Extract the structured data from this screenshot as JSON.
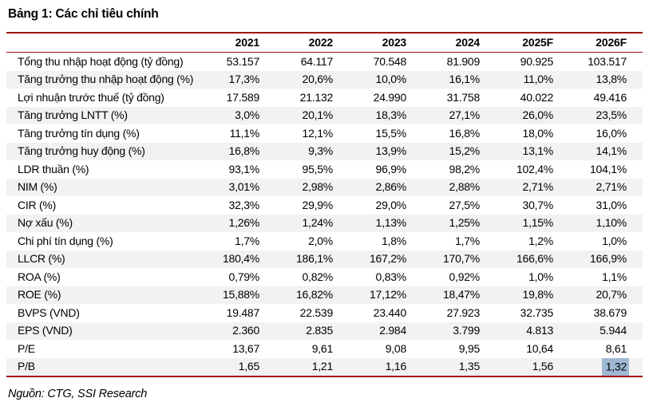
{
  "title": "Bảng 1: Các chỉ tiêu chính",
  "source_note": "Nguồn: CTG, SSI Research",
  "colors": {
    "rule_red": "#A50F0F",
    "alt_row_bg": "#F2F2F2",
    "highlight_blue": "#9FB9D4"
  },
  "table": {
    "columns": [
      "",
      "2021",
      "2022",
      "2023",
      "2024",
      "2025F",
      "2026F"
    ],
    "rows": [
      {
        "label": "Tổng thu nhập hoạt động (tỷ đồng)",
        "values": [
          "53.157",
          "64.117",
          "70.548",
          "81.909",
          "90.925",
          "103.517"
        ]
      },
      {
        "label": "Tăng trưởng thu nhập hoạt động (%)",
        "values": [
          "17,3%",
          "20,6%",
          "10,0%",
          "16,1%",
          "11,0%",
          "13,8%"
        ]
      },
      {
        "label": "Lợi nhuận trước thuế (tỷ đồng)",
        "values": [
          "17.589",
          "21.132",
          "24.990",
          "31.758",
          "40.022",
          "49.416"
        ]
      },
      {
        "label": "Tăng trưởng LNTT (%)",
        "values": [
          "3,0%",
          "20,1%",
          "18,3%",
          "27,1%",
          "26,0%",
          "23,5%"
        ]
      },
      {
        "label": "Tăng trưởng tín dụng (%)",
        "values": [
          "11,1%",
          "12,1%",
          "15,5%",
          "16,8%",
          "18,0%",
          "16,0%"
        ]
      },
      {
        "label": "Tăng trưởng huy động (%)",
        "values": [
          "16,8%",
          "9,3%",
          "13,9%",
          "15,2%",
          "13,1%",
          "14,1%"
        ]
      },
      {
        "label": "LDR thuần (%)",
        "values": [
          "93,1%",
          "95,5%",
          "96,9%",
          "98,2%",
          "102,4%",
          "104,1%"
        ]
      },
      {
        "label": "NIM (%)",
        "values": [
          "3,01%",
          "2,98%",
          "2,86%",
          "2,88%",
          "2,71%",
          "2,71%"
        ]
      },
      {
        "label": "CIR (%)",
        "values": [
          "32,3%",
          "29,9%",
          "29,0%",
          "27,5%",
          "30,7%",
          "31,0%"
        ]
      },
      {
        "label": "Nợ xấu (%)",
        "values": [
          "1,26%",
          "1,24%",
          "1,13%",
          "1,25%",
          "1,15%",
          "1,10%"
        ]
      },
      {
        "label": "Chi phí tín dụng (%)",
        "values": [
          "1,7%",
          "2,0%",
          "1,8%",
          "1,7%",
          "1,2%",
          "1,0%"
        ]
      },
      {
        "label": "LLCR (%)",
        "values": [
          "180,4%",
          "186,1%",
          "167,2%",
          "170,7%",
          "166,6%",
          "166,9%"
        ]
      },
      {
        "label": "ROA (%)",
        "values": [
          "0,79%",
          "0,82%",
          "0,83%",
          "0,92%",
          "1,0%",
          "1,1%"
        ]
      },
      {
        "label": "ROE (%)",
        "values": [
          "15,88%",
          "16,82%",
          "17,12%",
          "18,47%",
          "19,8%",
          "20,7%"
        ]
      },
      {
        "label": "BVPS (VND)",
        "values": [
          "19.487",
          "22.539",
          "23.440",
          "27.923",
          "32.735",
          "38.679"
        ]
      },
      {
        "label": "EPS (VND)",
        "values": [
          "2.360",
          "2.835",
          "2.984",
          "3.799",
          "4.813",
          "5.944"
        ]
      },
      {
        "label": "P/E",
        "values": [
          "13,67",
          "9,61",
          "9,08",
          "9,95",
          "10,64",
          "8,61"
        ]
      },
      {
        "label": "P/B",
        "values": [
          "1,65",
          "1,21",
          "1,16",
          "1,35",
          "1,56",
          "1,32"
        ]
      }
    ],
    "highlight": {
      "row": 17,
      "col": 5
    }
  }
}
